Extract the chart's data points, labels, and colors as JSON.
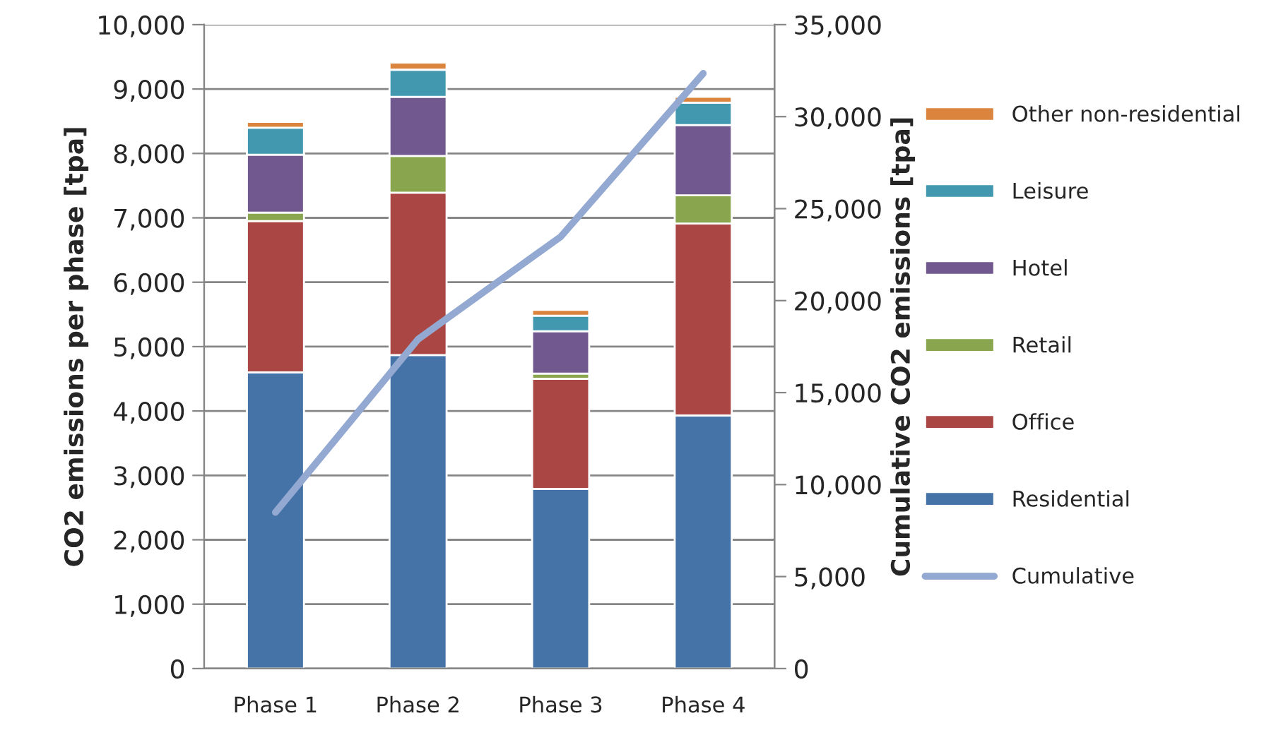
{
  "chart_data": {
    "type": "bar",
    "stacked": true,
    "categories": [
      "Phase 1",
      "Phase 2",
      "Phase 3",
      "Phase 4"
    ],
    "ylabel": "CO2 emissions per phase [tpa]",
    "y2label": "Cumulative CO2 emissions [tpa]",
    "ylim": [
      0,
      10000
    ],
    "yticks": [
      0,
      {
        "value": 1000,
        "label": "1,000"
      },
      {
        "value": 2000,
        "label": "2,000"
      },
      {
        "value": 3000,
        "label": "3,000"
      },
      {
        "value": 4000,
        "label": "4,000"
      },
      {
        "value": 5000,
        "label": "5,000"
      },
      {
        "value": 6000,
        "label": "6,000"
      },
      {
        "value": 7000,
        "label": "7,000"
      },
      {
        "value": 8000,
        "label": "8,000"
      },
      {
        "value": 9000,
        "label": "9,000"
      },
      {
        "value": 10000,
        "label": "10,000"
      }
    ],
    "y2lim": [
      0,
      35000
    ],
    "y2ticks": [
      0,
      {
        "value": 5000,
        "label": "5,000"
      },
      {
        "value": 10000,
        "label": "10,000"
      },
      {
        "value": 15000,
        "label": "15,000"
      },
      {
        "value": 20000,
        "label": "20,000"
      },
      {
        "value": 25000,
        "label": "25,000"
      },
      {
        "value": 30000,
        "label": "30,000"
      },
      {
        "value": 35000,
        "label": "35,000"
      }
    ],
    "grid": "y",
    "legend": "right",
    "series": [
      {
        "name": "Residential",
        "color": "#4572a7",
        "values": [
          4600,
          4870,
          2790,
          3930
        ]
      },
      {
        "name": "Office",
        "color": "#aa4643",
        "values": [
          2350,
          2520,
          1710,
          2980
        ]
      },
      {
        "name": "Retail",
        "color": "#89a54e",
        "values": [
          130,
          570,
          80,
          440
        ]
      },
      {
        "name": "Hotel",
        "color": "#71588f",
        "values": [
          900,
          920,
          660,
          1090
        ]
      },
      {
        "name": "Leisure",
        "color": "#4198af",
        "values": [
          420,
          420,
          240,
          350
        ]
      },
      {
        "name": "Other non-residential",
        "color": "#db843d",
        "values": [
          90,
          110,
          90,
          90
        ]
      },
      {
        "name": "Cumulative",
        "type": "line",
        "axis": "y2",
        "color": "#93a9d1",
        "values": [
          8490,
          17900,
          23470,
          32350
        ]
      }
    ]
  }
}
